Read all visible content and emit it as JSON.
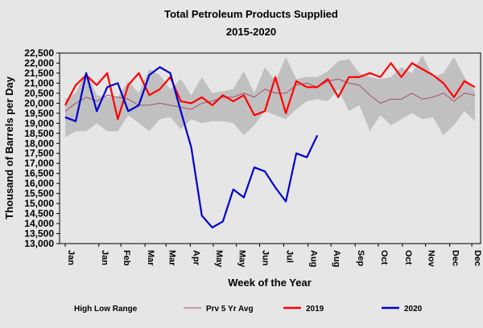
{
  "chart_data": {
    "type": "line",
    "title": "Total Petroleum Products Supplied",
    "subtitle": "2015-2020",
    "xlabel": "Week of the Year",
    "ylabel": "Thousand of Barrels per Day",
    "ylim": [
      13000,
      22500
    ],
    "y_ticks": [
      "13,000",
      "13,500",
      "14,000",
      "14,500",
      "15,000",
      "15,500",
      "16,000",
      "16,500",
      "17,000",
      "17,500",
      "18,000",
      "18,500",
      "19,000",
      "19,500",
      "20,000",
      "20,500",
      "21,000",
      "21,500",
      "22,000",
      "22,500"
    ],
    "y_tick_values": [
      13000,
      13500,
      14000,
      14500,
      15000,
      15500,
      16000,
      16500,
      17000,
      17500,
      18000,
      18500,
      19000,
      19500,
      20000,
      20500,
      21000,
      21500,
      22000,
      22500
    ],
    "x_ticks": [
      {
        "label": "Jan",
        "week": 1
      },
      {
        "label": "Jan",
        "week": 4.2
      },
      {
        "label": "Feb",
        "week": 6.3
      },
      {
        "label": "Mar",
        "week": 8.6
      },
      {
        "label": "Mar",
        "week": 10.6
      },
      {
        "label": "Apr",
        "week": 12.9
      },
      {
        "label": "May",
        "week": 15.1
      },
      {
        "label": "May",
        "week": 17.3
      },
      {
        "label": "Jun",
        "week": 19.5
      },
      {
        "label": "Jul",
        "week": 21.8
      },
      {
        "label": "Aug",
        "week": 24.1
      },
      {
        "label": "Aug",
        "week": 26.3
      },
      {
        "label": "Sep",
        "week": 28.6
      },
      {
        "label": "Oct",
        "week": 30.8
      },
      {
        "label": "Oct",
        "week": 33.1
      },
      {
        "label": "Nov",
        "week": 35.3
      },
      {
        "label": "Dec",
        "week": 37.6
      },
      {
        "label": "Dec",
        "week": 39.7
      }
    ],
    "x_range": [
      1,
      40
    ],
    "grid": false,
    "legend_position": "bottom",
    "colors": {
      "range": "#c0c0c0",
      "avg": "#a0526c",
      "s2019": "#ff0000",
      "s2020": "#0000cc",
      "background": "#e6e6e6"
    },
    "legend": [
      {
        "label": "High Low Range",
        "kind": "range"
      },
      {
        "label": "Prv 5 Yr Avg",
        "kind": "avg"
      },
      {
        "label": "2019",
        "kind": "s2019"
      },
      {
        "label": "2020",
        "kind": "s2020"
      }
    ],
    "series": [
      {
        "name": "High Low Range",
        "kind": "range",
        "x": [
          1,
          2,
          3,
          4,
          5,
          6,
          7,
          8,
          9,
          10,
          11,
          12,
          13,
          14,
          15,
          16,
          17,
          18,
          19,
          20,
          21,
          22,
          23,
          24,
          25,
          26,
          27,
          28,
          29,
          30,
          31,
          32,
          33,
          34,
          35,
          36,
          37,
          38,
          39,
          40
        ],
        "high": [
          20200,
          20500,
          21600,
          20400,
          20300,
          20300,
          21100,
          20500,
          21700,
          21400,
          20700,
          21200,
          20400,
          21300,
          20500,
          20600,
          20700,
          21600,
          20500,
          21800,
          21100,
          22300,
          21200,
          21300,
          21300,
          21600,
          22100,
          22200,
          21500,
          21300,
          21200,
          21300,
          21800,
          21500,
          22400,
          21300,
          21500,
          22300,
          21300,
          20600
        ],
        "low": [
          18300,
          18600,
          18600,
          19000,
          18600,
          18600,
          19400,
          19000,
          18600,
          19200,
          19300,
          18700,
          19200,
          19000,
          19100,
          19100,
          19000,
          18400,
          18900,
          19600,
          19400,
          19200,
          19700,
          20100,
          20200,
          20100,
          20700,
          19600,
          19900,
          18600,
          19400,
          18900,
          19200,
          19500,
          19200,
          19300,
          18400,
          18900,
          19600,
          19100
        ]
      },
      {
        "name": "Prv 5 Yr Avg",
        "kind": "avg",
        "x": [
          1,
          2,
          3,
          4,
          5,
          6,
          7,
          8,
          9,
          10,
          11,
          12,
          13,
          14,
          15,
          16,
          17,
          18,
          19,
          20,
          21,
          22,
          23,
          24,
          25,
          26,
          27,
          28,
          29,
          30,
          31,
          32,
          33,
          34,
          35,
          36,
          37,
          38,
          39,
          40
        ],
        "values": [
          19600,
          20000,
          20300,
          20100,
          20400,
          20300,
          20200,
          19900,
          19900,
          20000,
          19900,
          19800,
          19700,
          20000,
          20100,
          20300,
          20300,
          20500,
          20300,
          20700,
          20500,
          20500,
          20900,
          21000,
          20800,
          21100,
          21200,
          21000,
          20900,
          20400,
          20000,
          20200,
          20200,
          20500,
          20200,
          20300,
          20500,
          20100,
          20500,
          20400
        ]
      },
      {
        "name": "2019",
        "kind": "s2019",
        "x": [
          1,
          2,
          3,
          4,
          5,
          6,
          7,
          8,
          9,
          10,
          11,
          12,
          13,
          14,
          15,
          16,
          17,
          18,
          19,
          20,
          21,
          22,
          23,
          24,
          25,
          26,
          27,
          28,
          29,
          30,
          31,
          32,
          33,
          34,
          35,
          36,
          37,
          38,
          39,
          40
        ],
        "values": [
          19900,
          20900,
          21400,
          20900,
          21500,
          19200,
          20900,
          21500,
          20400,
          20700,
          21300,
          20100,
          20000,
          20300,
          19900,
          20400,
          20100,
          20400,
          19400,
          19600,
          21300,
          19500,
          21100,
          20800,
          20800,
          21200,
          20300,
          21300,
          21300,
          21500,
          21300,
          22000,
          21300,
          22000,
          21700,
          21400,
          21000,
          20300,
          21100,
          20800
        ]
      },
      {
        "name": "2020",
        "kind": "s2020",
        "x": [
          1,
          2,
          3,
          4,
          5,
          6,
          7,
          8,
          9,
          10,
          11,
          12,
          13,
          14,
          15,
          16,
          17,
          18,
          19,
          20,
          21,
          22,
          23,
          24,
          25
        ],
        "values": [
          19300,
          19100,
          21500,
          19600,
          20800,
          21000,
          19600,
          19900,
          21400,
          21800,
          21500,
          19600,
          17800,
          14400,
          13800,
          14100,
          15700,
          15300,
          16800,
          16600,
          15800,
          15100,
          17500,
          17300,
          18400
        ]
      }
    ]
  }
}
